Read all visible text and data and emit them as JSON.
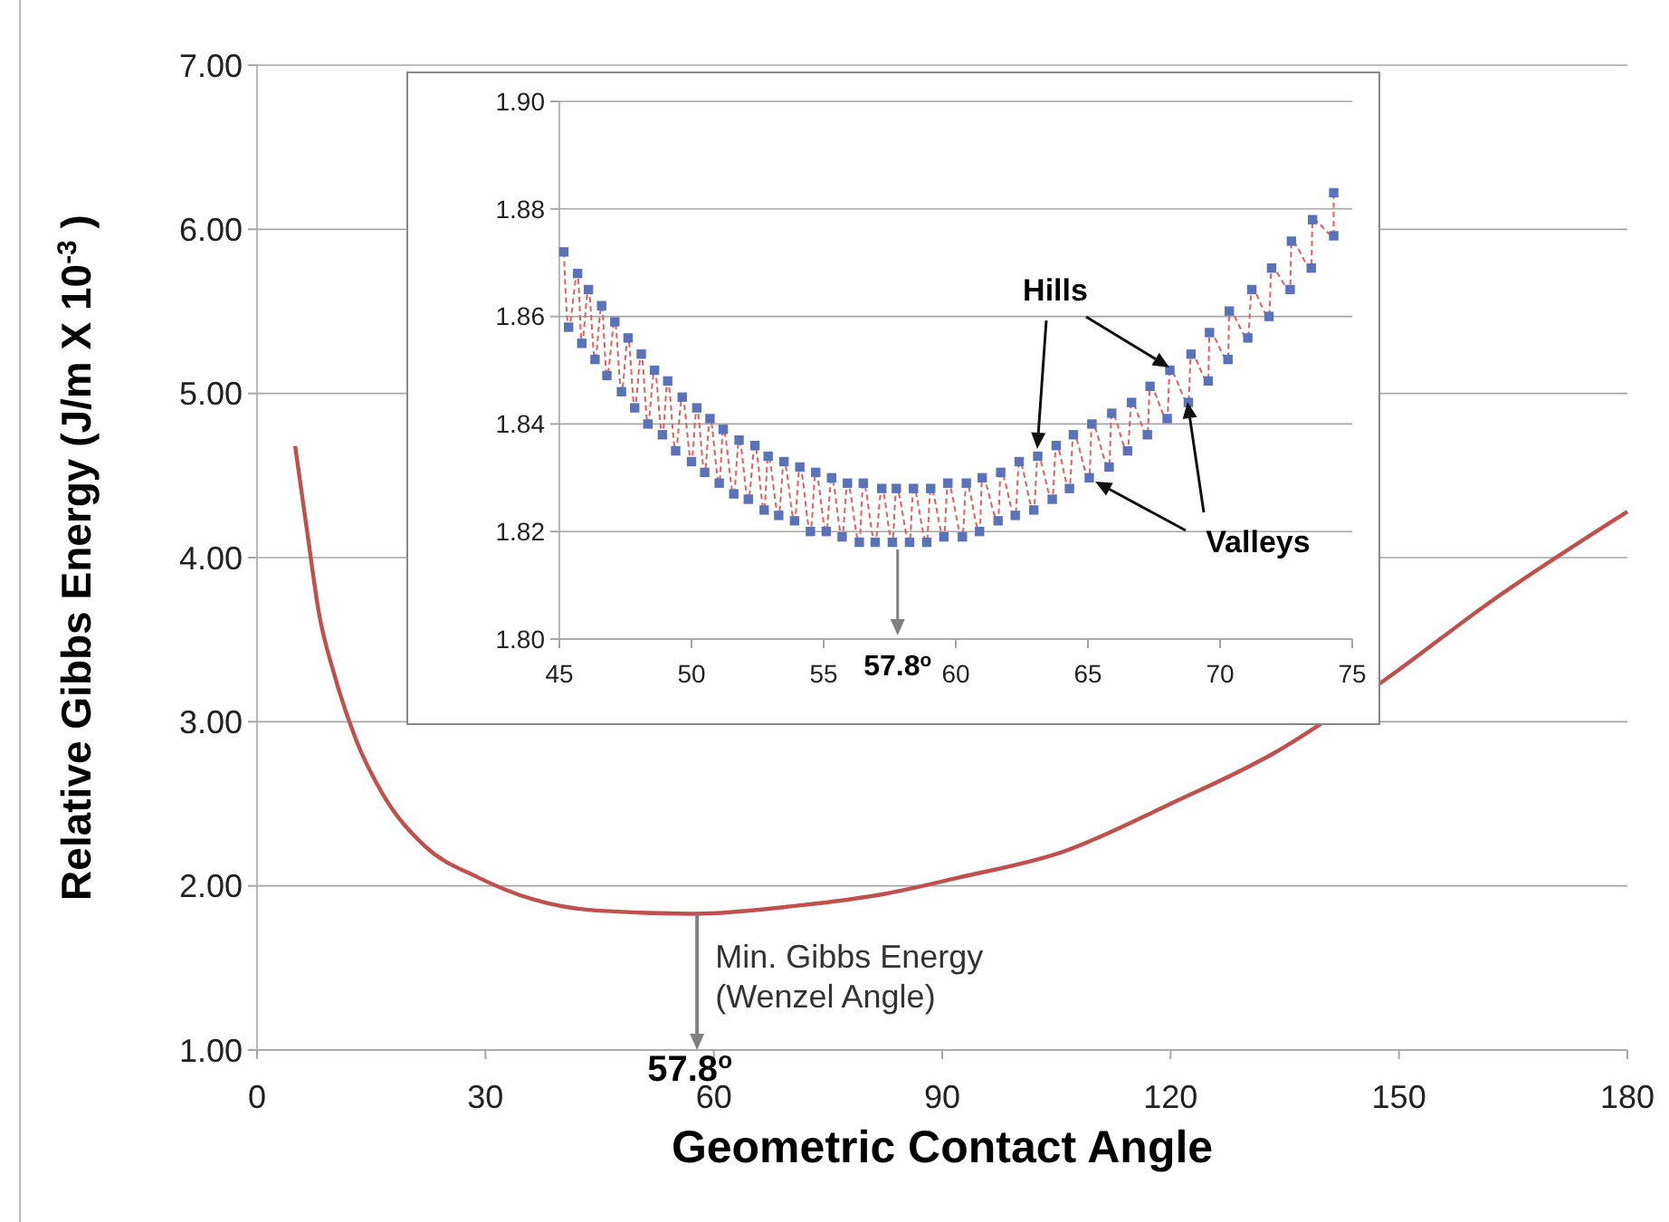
{
  "chart_data": [
    {
      "type": "line",
      "xlabel": "Geometric Contact Angle",
      "ylabel": "Relative Gibbs Energy (J/m X 10$^{-3}$ )",
      "xlim": [
        0,
        180
      ],
      "xticks": [
        0,
        30,
        60,
        90,
        120,
        150,
        180
      ],
      "ylim": [
        1,
        7
      ],
      "yticks": [
        {
          "value": 1,
          "label": "1.00"
        },
        {
          "value": 2,
          "label": "2.00"
        },
        {
          "value": 3,
          "label": "3.00"
        },
        {
          "value": 4,
          "label": "4.00"
        },
        {
          "value": 5,
          "label": "5.00"
        },
        {
          "value": 6,
          "label": "6.00"
        },
        {
          "value": 7,
          "label": "7.00"
        }
      ],
      "grid": "y",
      "marker": "none",
      "line_style": "solid",
      "series": [
        {
          "color": "#c0504d",
          "x": [
            5,
            6.7,
            8.1,
            10.2,
            13,
            16.5,
            22.1,
            29.1,
            36.1,
            44.5,
            57.5,
            71.1,
            82.3,
            92.1,
            106,
            120,
            134,
            148,
            162,
            180
          ],
          "values": [
            4.68,
            4.12,
            3.67,
            3.28,
            2.89,
            2.56,
            2.24,
            2.05,
            1.92,
            1.85,
            1.83,
            1.88,
            1.95,
            2.05,
            2.21,
            2.5,
            2.82,
            3.25,
            3.73,
            4.28
          ]
        }
      ],
      "annotations": [
        {
          "text": "Min. Gibbs Energy (Wenzel Angle)",
          "x": 57.8,
          "y": 1.83
        },
        "57.8$^{o}$"
      ]
    },
    {
      "type": "line",
      "xlim": [
        45,
        75
      ],
      "xticks": [
        45,
        50,
        55,
        60,
        65,
        70,
        75
      ],
      "ylim": [
        1.8,
        1.9
      ],
      "yticks": [
        {
          "value": 1.8,
          "label": "1.80"
        },
        {
          "value": 1.82,
          "label": "1.82"
        },
        {
          "value": 1.84,
          "label": "1.84"
        },
        {
          "value": 1.86,
          "label": "1.86"
        },
        {
          "value": 1.88,
          "label": "1.88"
        },
        {
          "value": 1.9,
          "label": "1.90"
        }
      ],
      "grid": "y",
      "marker": "square",
      "line_style": "dashed",
      "series": [
        {
          "color": "#e06060",
          "x": [
            45.17,
            45.35,
            45.69,
            45.85,
            46.1,
            46.35,
            46.6,
            46.8,
            47.1,
            47.35,
            47.6,
            47.85,
            48.1,
            48.35,
            48.6,
            48.9,
            49.1,
            49.4,
            49.65,
            50,
            50.2,
            50.5,
            50.7,
            51.05,
            51.2,
            51.6,
            51.8,
            52.15,
            52.4,
            52.75,
            52.9,
            53.3,
            53.5,
            53.9,
            54.1,
            54.5,
            54.7,
            55.1,
            55.3,
            55.7,
            55.9,
            56.35,
            56.5,
            56.95,
            57.2,
            57.6,
            57.75,
            58.25,
            58.4,
            58.9,
            59.05,
            59.55,
            59.7,
            60.25,
            60.4,
            60.9,
            61,
            61.6,
            61.7,
            62.25,
            62.4,
            62.95,
            63.1,
            63.65,
            63.8,
            64.3,
            64.45,
            65.05,
            65.15,
            65.8,
            65.9,
            66.5,
            66.65,
            67.25,
            67.35,
            68,
            68.1,
            68.8,
            68.9,
            69.55,
            69.6,
            70.3,
            70.35,
            71.05,
            71.2,
            71.85,
            71.95,
            72.65,
            72.7,
            73.45,
            73.5,
            74.3,
            74.3
          ],
          "values": [
            1.872,
            1.858,
            1.868,
            1.855,
            1.865,
            1.852,
            1.862,
            1.849,
            1.859,
            1.846,
            1.856,
            1.843,
            1.853,
            1.84,
            1.85,
            1.838,
            1.848,
            1.835,
            1.845,
            1.833,
            1.843,
            1.831,
            1.841,
            1.829,
            1.839,
            1.827,
            1.837,
            1.826,
            1.836,
            1.824,
            1.834,
            1.823,
            1.833,
            1.822,
            1.832,
            1.82,
            1.831,
            1.82,
            1.83,
            1.819,
            1.829,
            1.818,
            1.829,
            1.818,
            1.828,
            1.818,
            1.828,
            1.818,
            1.828,
            1.818,
            1.828,
            1.819,
            1.829,
            1.819,
            1.829,
            1.82,
            1.83,
            1.822,
            1.831,
            1.823,
            1.833,
            1.824,
            1.834,
            1.826,
            1.836,
            1.828,
            1.838,
            1.83,
            1.84,
            1.832,
            1.842,
            1.835,
            1.844,
            1.838,
            1.847,
            1.841,
            1.85,
            1.844,
            1.853,
            1.848,
            1.857,
            1.852,
            1.861,
            1.856,
            1.865,
            1.86,
            1.869,
            1.865,
            1.874,
            1.869,
            1.878,
            1.875,
            1.883
          ]
        }
      ],
      "annotations": [
        "Hills",
        "Valleys",
        {
          "text": "57.8$^{o}$",
          "x": 57.8,
          "y": 1.818
        }
      ]
    }
  ]
}
